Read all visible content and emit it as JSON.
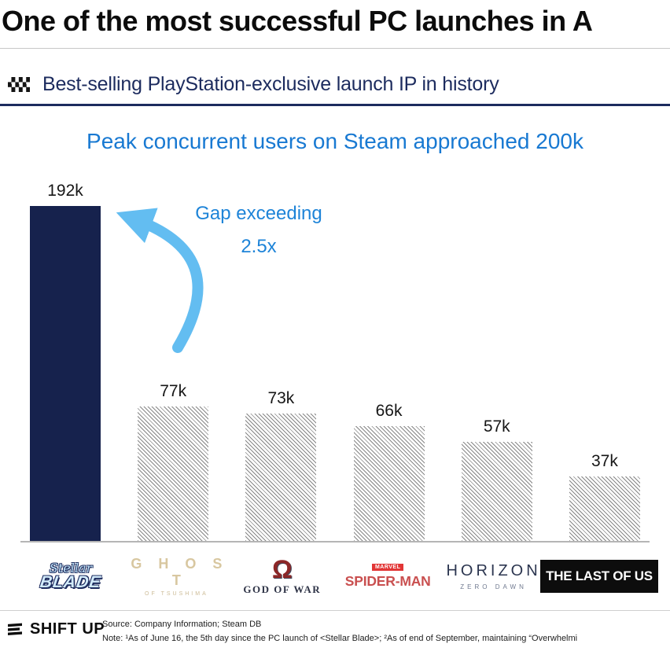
{
  "header": {
    "title": "One of the most successful PC launches in A",
    "section": {
      "icon": "checkered-flag-icon",
      "title": "Best-selling PlayStation-exclusive launch IP in history"
    },
    "subtitle": "Peak concurrent users on Steam approached 200k"
  },
  "chart_data": {
    "type": "bar",
    "title": "Peak concurrent users on Steam approached 200k",
    "categories": [
      "Stellar Blade",
      "Ghost of Tsushima",
      "God of War",
      "Marvel's Spider-Man",
      "Horizon Zero Dawn",
      "The Last of Us"
    ],
    "values": [
      192,
      77,
      73,
      66,
      57,
      37
    ],
    "unit": "k peak concurrent Steam users",
    "value_labels": [
      "192k",
      "77k",
      "73k",
      "66k",
      "57k",
      "37k"
    ],
    "highlight_index": 0,
    "annotation": {
      "line1": "Gap exceeding",
      "line2": "2.5x"
    },
    "ylim": [
      0,
      200
    ],
    "legend": "none",
    "grid": "off",
    "colors": {
      "highlight_bar": "#16224d",
      "hatch_bar": "#868686",
      "accent_blue": "#1879d2",
      "arrow_blue": "#63bdf1"
    }
  },
  "logos": {
    "stellar_blade": {
      "line1": "Stellar",
      "line2": "BLADE"
    },
    "ghost": {
      "line1": "G H O S T",
      "line2": "OF TSUSHIMA"
    },
    "god_of_war": {
      "symbol": "Ω",
      "text": "GOD OF WAR"
    },
    "spider_man": {
      "badge": "MARVEL",
      "text": "SPIDER-MAN"
    },
    "horizon": {
      "line1": "HORIZON",
      "line2": "ZERO DAWN"
    },
    "last_of_us": {
      "text": "THE LAST OF US"
    }
  },
  "footer": {
    "brand": "SHIFT UP",
    "source": "Source: Company Information; Steam DB",
    "note": "Note: ¹As of June 16, the 5th day since the PC launch of <Stellar Blade>; ²As of end of September, maintaining “Overwhelmi"
  }
}
